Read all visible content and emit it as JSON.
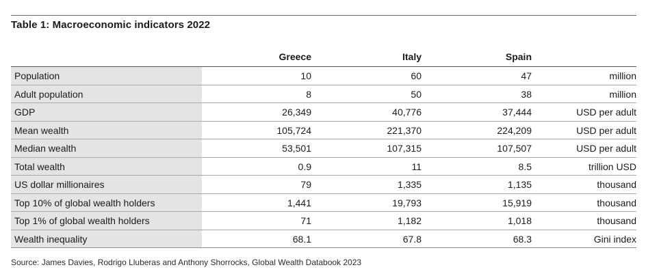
{
  "title": "Table 1: Macroeconomic indicators 2022",
  "columns": {
    "greece": "Greece",
    "italy": "Italy",
    "spain": "Spain"
  },
  "rows": [
    {
      "label": "Population",
      "greece": "10",
      "italy": "60",
      "spain": "47",
      "unit": "million"
    },
    {
      "label": "Adult population",
      "greece": "8",
      "italy": "50",
      "spain": "38",
      "unit": "million"
    },
    {
      "label": "GDP",
      "greece": "26,349",
      "italy": "40,776",
      "spain": "37,444",
      "unit": "USD per adult"
    },
    {
      "label": "Mean wealth",
      "greece": "105,724",
      "italy": "221,370",
      "spain": "224,209",
      "unit": "USD per adult"
    },
    {
      "label": "Median wealth",
      "greece": "53,501",
      "italy": "107,315",
      "spain": "107,507",
      "unit": "USD per adult"
    },
    {
      "label": "Total wealth",
      "greece": "0.9",
      "italy": "11",
      "spain": "8.5",
      "unit": "trillion USD"
    },
    {
      "label": "US dollar millionaires",
      "greece": "79",
      "italy": "1,335",
      "spain": "1,135",
      "unit": "thousand"
    },
    {
      "label": "Top 10% of global wealth holders",
      "greece": "1,441",
      "italy": "19,793",
      "spain": "15,919",
      "unit": "thousand"
    },
    {
      "label": "Top 1% of global wealth holders",
      "greece": "71",
      "italy": "1,182",
      "spain": "1,018",
      "unit": "thousand"
    },
    {
      "label": "Wealth inequality",
      "greece": "68.1",
      "italy": "67.8",
      "spain": "68.3",
      "unit": "Gini index"
    }
  ],
  "source": "Source: James Davies, Rodrigo Lluberas and Anthony Shorrocks, Global Wealth Databook 2023",
  "colors": {
    "label_shade": "#e4e4e4",
    "rule": "#555555"
  }
}
